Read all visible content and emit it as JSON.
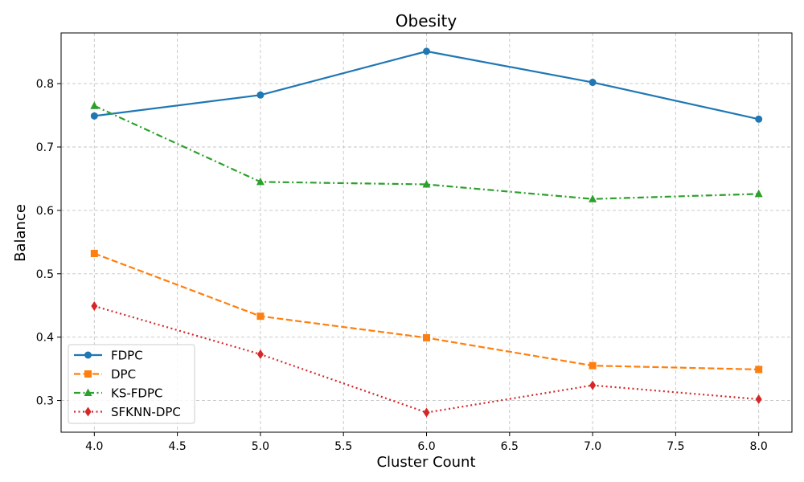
{
  "chart_data": {
    "type": "line",
    "title": "Obesity",
    "xlabel": "Cluster Count",
    "ylabel": "Balance",
    "x": [
      4.0,
      5.0,
      6.0,
      7.0,
      8.0
    ],
    "xlim": [
      3.8,
      8.2
    ],
    "ylim": [
      0.25,
      0.88
    ],
    "xticks": [
      4.0,
      4.5,
      5.0,
      5.5,
      6.0,
      6.5,
      7.0,
      7.5,
      8.0
    ],
    "xtick_labels": [
      "4.0",
      "4.5",
      "5.0",
      "5.5",
      "6.0",
      "6.5",
      "7.0",
      "7.5",
      "8.0"
    ],
    "yticks": [
      0.3,
      0.4,
      0.5,
      0.6,
      0.7,
      0.8
    ],
    "ytick_labels": [
      "0.3",
      "0.4",
      "0.5",
      "0.6",
      "0.7",
      "0.8"
    ],
    "grid": true,
    "legend_position": "lower-left",
    "series": [
      {
        "name": "FDPC",
        "values": [
          0.749,
          0.782,
          0.851,
          0.802,
          0.744
        ],
        "color": "#1f77b4",
        "marker": "circle",
        "linestyle": "solid"
      },
      {
        "name": "DPC",
        "values": [
          0.532,
          0.433,
          0.399,
          0.355,
          0.349
        ],
        "color": "#ff7f0e",
        "marker": "square",
        "linestyle": "dashed"
      },
      {
        "name": "KS-FDPC",
        "values": [
          0.765,
          0.645,
          0.641,
          0.618,
          0.626
        ],
        "color": "#2ca02c",
        "marker": "triangle",
        "linestyle": "dashdot"
      },
      {
        "name": "SFKNN-DPC",
        "values": [
          0.449,
          0.373,
          0.281,
          0.324,
          0.302
        ],
        "color": "#d62728",
        "marker": "diamond",
        "linestyle": "dotted"
      }
    ]
  }
}
